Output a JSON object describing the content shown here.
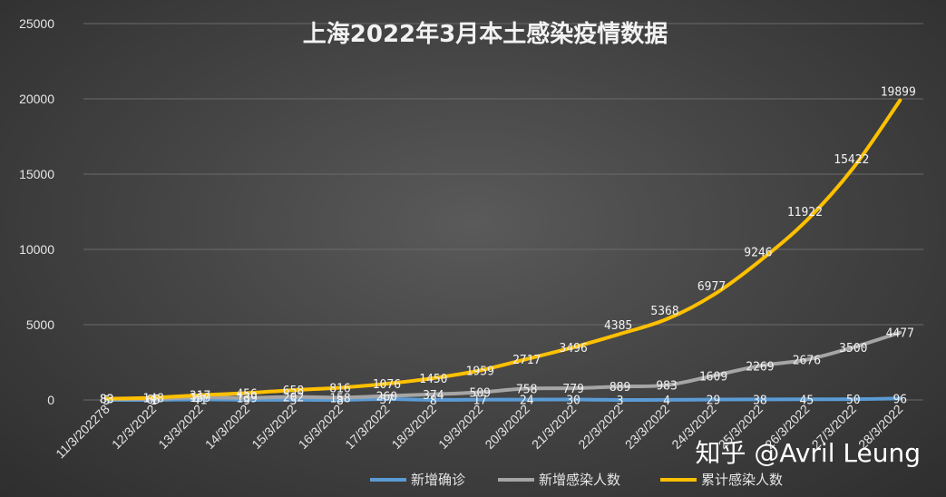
{
  "chart_data": {
    "type": "line",
    "title": "上海2022年3月本土感染疫情数据",
    "ylim": [
      0,
      25000
    ],
    "yticks": [
      0,
      5000,
      10000,
      15000,
      20000,
      25000
    ],
    "grid": true,
    "legend_position": "bottom",
    "categories": [
      "11/3/202278",
      "12/3/2022",
      "13/3/2022",
      "14/3/2022",
      "15/3/2022",
      "16/3/2022",
      "17/3/2022",
      "18/3/2022",
      "19/3/2022",
      "20/3/2022",
      "21/3/2022",
      "22/3/2022",
      "23/3/2022",
      "24/3/2022",
      "25/3/2022",
      "26/3/2022",
      "27/3/2022",
      "28/3/2022"
    ],
    "series": [
      {
        "name": "新增确诊",
        "color": "#5b9bd5",
        "values": [
          5,
          1,
          41,
          9,
          5,
          8,
          57,
          8,
          17,
          24,
          30,
          3,
          4,
          29,
          38,
          45,
          50,
          96
        ]
      },
      {
        "name": "新增感染人数",
        "color": "#a5a5a5",
        "values": [
          83,
          65,
          169,
          139,
          202,
          158,
          260,
          374,
          509,
          758,
          779,
          889,
          983,
          1609,
          2269,
          2676,
          3500,
          4477
        ]
      },
      {
        "name": "累计感染人数",
        "color": "#ffc000",
        "values": [
          83,
          148,
          317,
          456,
          658,
          816,
          1076,
          1450,
          1959,
          2717,
          3496,
          4385,
          5368,
          6977,
          9246,
          11922,
          15422,
          19899
        ]
      }
    ]
  },
  "watermark": "知乎 @Avril Leung"
}
